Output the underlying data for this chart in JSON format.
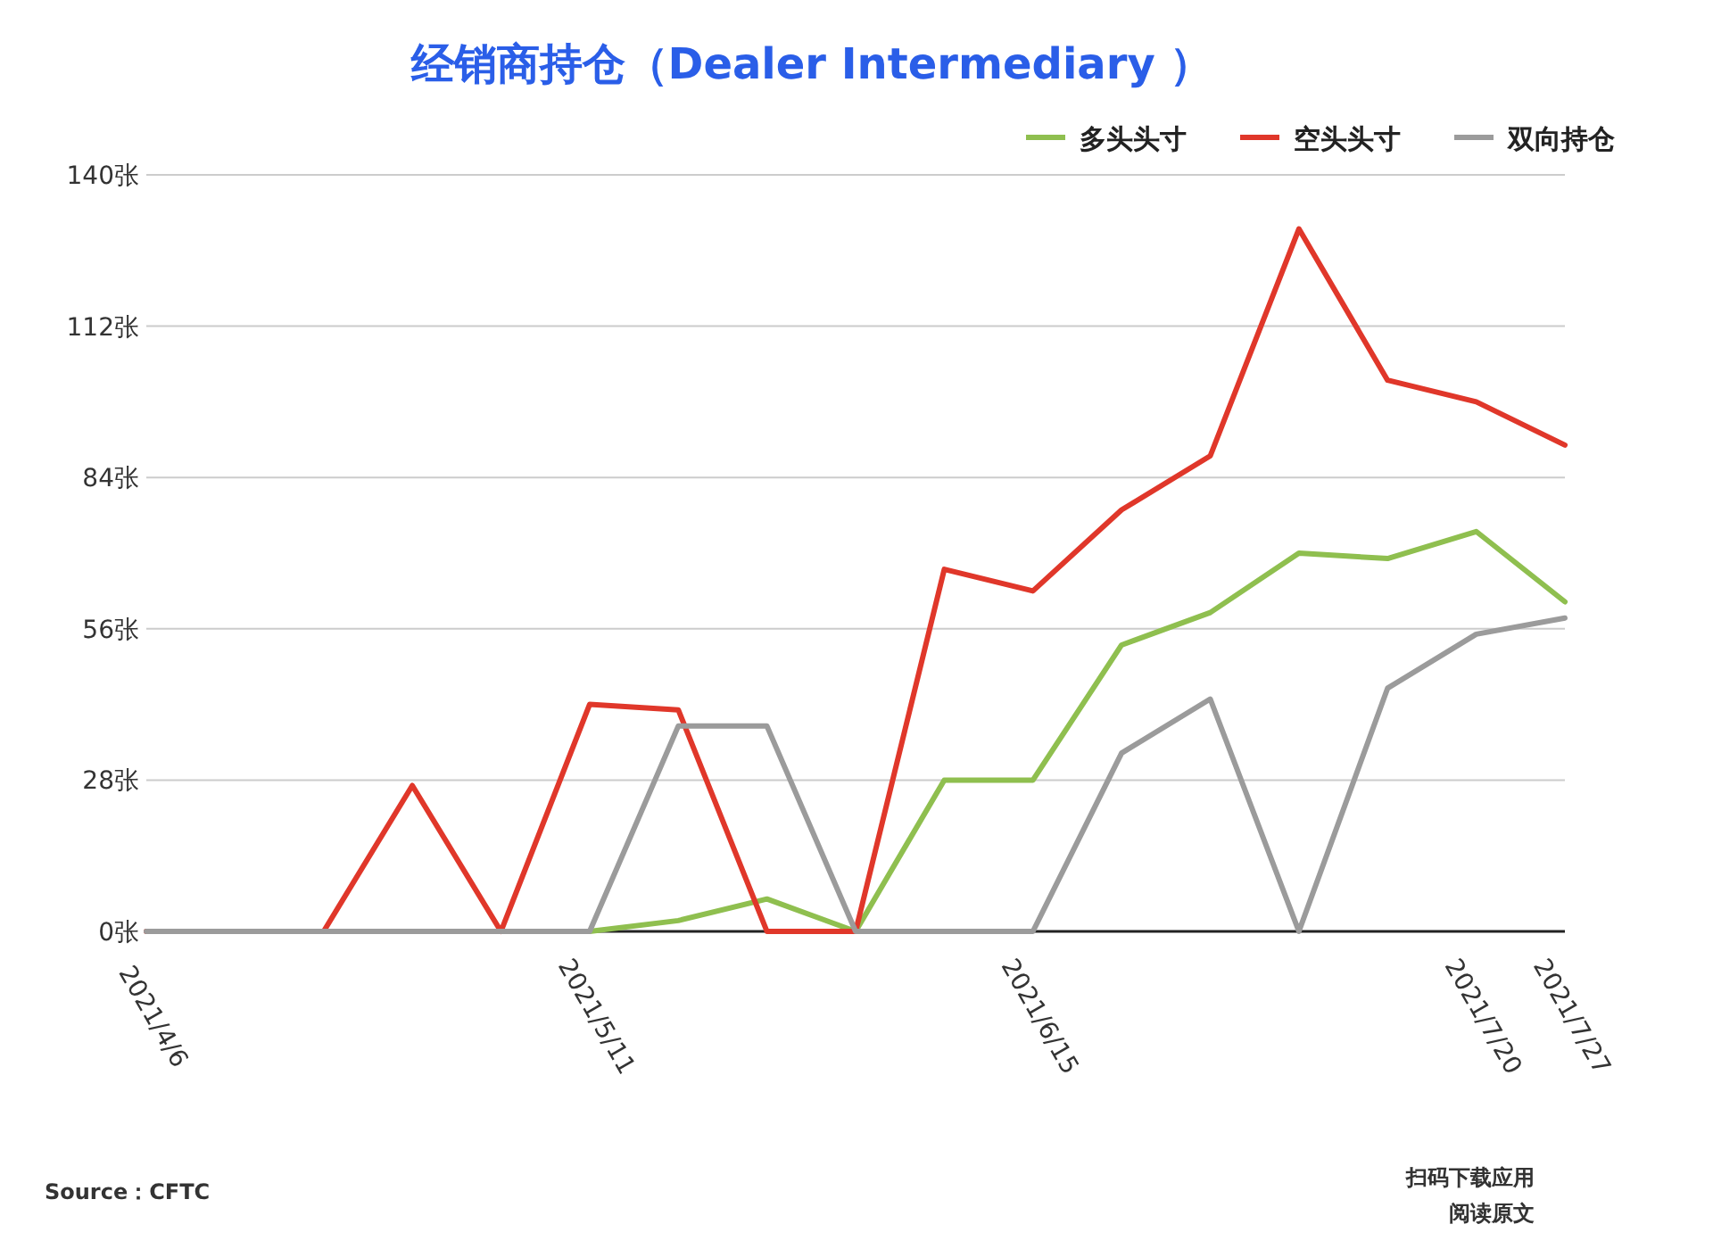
{
  "chart_data": {
    "type": "line",
    "title": "经销商持仓（Dealer Intermediary ）",
    "categories": [
      "2021/4/6",
      null,
      null,
      null,
      null,
      "2021/5/11",
      null,
      null,
      null,
      null,
      "2021/6/15",
      null,
      null,
      null,
      null,
      "2021/7/20",
      "2021/7/27"
    ],
    "series": [
      {
        "name": "多头头寸",
        "color": "#8fbf4f",
        "values": [
          null,
          null,
          null,
          null,
          0,
          0,
          2,
          6,
          0,
          28,
          28,
          53,
          59,
          70,
          69,
          74,
          61
        ]
      },
      {
        "name": "空头头寸",
        "color": "#e0372a",
        "values": [
          0,
          0,
          0,
          27,
          0,
          42,
          41,
          0,
          0,
          67,
          63,
          78,
          88,
          130,
          102,
          98,
          90
        ]
      },
      {
        "name": "双向持仓",
        "color": "#9b9b9b",
        "values": [
          0,
          0,
          0,
          0,
          0,
          0,
          38,
          38,
          0,
          0,
          0,
          33,
          43,
          0,
          45,
          55,
          58
        ]
      }
    ],
    "ylim": [
      0,
      140
    ],
    "yticks": [
      {
        "value": 0,
        "label": "0张"
      },
      {
        "value": 28,
        "label": "28张"
      },
      {
        "value": 56,
        "label": "56张"
      },
      {
        "value": 84,
        "label": "84张"
      },
      {
        "value": 112,
        "label": "112张"
      },
      {
        "value": 140,
        "label": "140张"
      }
    ],
    "grid": "y",
    "legend": "top right",
    "marker": "none",
    "line_style": "solid",
    "annotations": [
      "Source：CFTC",
      "扫码下载应用",
      "阅读原文"
    ]
  }
}
